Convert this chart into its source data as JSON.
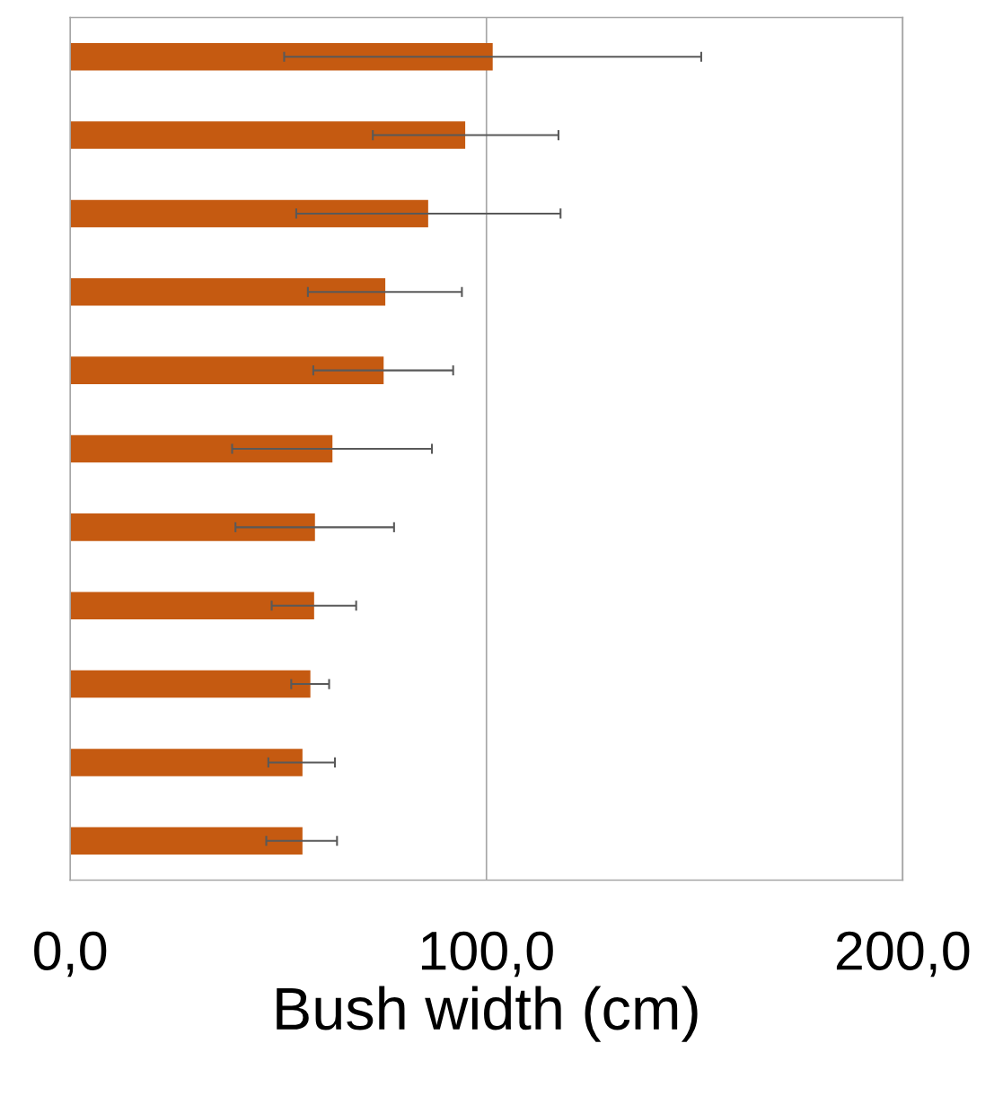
{
  "chart_data": {
    "type": "bar",
    "orientation": "horizontal",
    "xlabel": "Bush width (cm)",
    "categories": [
      null,
      null,
      null,
      null,
      null,
      null,
      null,
      null,
      null,
      null,
      null
    ],
    "values": [
      101.5,
      94.9,
      86.0,
      75.7,
      75.3,
      63.0,
      58.8,
      58.6,
      57.7,
      55.8,
      55.8
    ],
    "errors": [
      [
        51.4,
        151.6
      ],
      [
        72.7,
        117.3
      ],
      [
        54.3,
        117.8
      ],
      [
        57.1,
        94.1
      ],
      [
        58.4,
        92.0
      ],
      [
        38.9,
        86.9
      ],
      [
        39.7,
        77.8
      ],
      [
        48.4,
        68.7
      ],
      [
        53.1,
        62.2
      ],
      [
        47.6,
        63.6
      ],
      [
        47.1,
        64.1
      ]
    ],
    "color": "#c55a11",
    "xlim": [
      0,
      200
    ],
    "xticks": [
      {
        "value": 0,
        "label": "0,0"
      },
      {
        "value": 100,
        "label": "100,0"
      },
      {
        "value": 200,
        "label": "200,0"
      }
    ],
    "grid": "x"
  }
}
